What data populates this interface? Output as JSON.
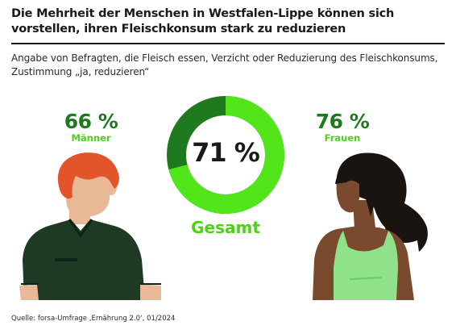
{
  "title": "Die Mehrheit der Menschen in Westfalen-Lippe können sich vorstellen, ihren Fleischkonsum stark zu reduzieren",
  "subtitle": "Angabe von Befragten, die Fleisch essen, Verzicht oder Reduzierung des Fleischkonsums, Zustimmung „ja, reduzieren“",
  "source": "Quelle: forsa-Umfrage ‚Ernährung 2.0‘, 01/2024",
  "colors": {
    "dark_green": "#1f7a1f",
    "light_green": "#52e61a",
    "label_green": "#4fd11a",
    "text": "#1a1a1a"
  },
  "chart_data": {
    "type": "pie",
    "title": "Die Mehrheit der Menschen in Westfalen-Lippe können sich vorstellen, ihren Fleischkonsum stark zu reduzieren",
    "subtitle": "Angabe von Befragten, die Fleisch essen, Verzicht oder Reduzierung des Fleischkonsums, Zustimmung „ja, reduzieren“",
    "unit": "%",
    "gesamt": {
      "label": "Gesamt",
      "value": 71,
      "display": "71 %"
    },
    "groups": [
      {
        "label": "Männer",
        "value": 66,
        "display": "66 %"
      },
      {
        "label": "Frauen",
        "value": 76,
        "display": "76 %"
      }
    ]
  }
}
